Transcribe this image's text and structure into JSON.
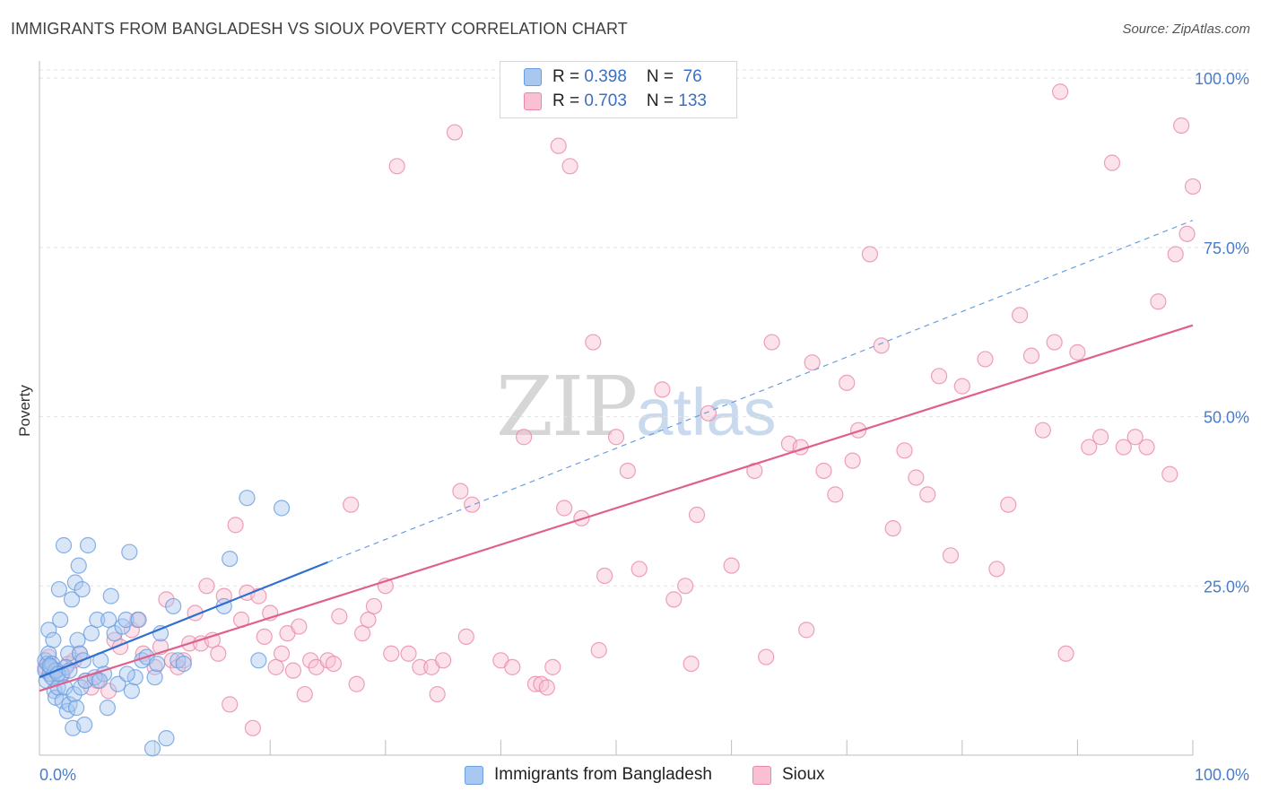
{
  "title": "IMMIGRANTS FROM BANGLADESH VS SIOUX POVERTY CORRELATION CHART",
  "source": "Source: ZipAtlas.com",
  "watermark": {
    "zip": "ZIP",
    "atlas": "atlas"
  },
  "legend": {
    "rows": [
      {
        "r_label": "R = ",
        "r_value": "0.398",
        "n_label": "N = ",
        "n_value": " 76",
        "color": "#a9c8f0",
        "border": "#6a9ee0"
      },
      {
        "r_label": "R = ",
        "r_value": "0.703",
        "n_label": "N = ",
        "n_value": "133",
        "color": "#f8c0d2",
        "border": "#e889a8"
      }
    ]
  },
  "bottom_legend": [
    {
      "label": "Immigrants from Bangladesh",
      "color": "#a9c8f0",
      "border": "#6a9ee0"
    },
    {
      "label": "Sioux",
      "color": "#f8c0d2",
      "border": "#e889a8"
    }
  ],
  "chart_data": {
    "type": "scatter",
    "title": "IMMIGRANTS FROM BANGLADESH VS SIOUX POVERTY CORRELATION CHART",
    "xlabel": "",
    "ylabel": "Poverty",
    "xlim": [
      0,
      100
    ],
    "ylim": [
      0,
      100
    ],
    "x_ticks": [
      "0.0%",
      "100.0%"
    ],
    "y_ticks": [
      {
        "value": 25,
        "label": "25.0%"
      },
      {
        "value": 50,
        "label": "50.0%"
      },
      {
        "value": 75,
        "label": "75.0%"
      },
      {
        "value": 100,
        "label": "100.0%"
      }
    ],
    "grid": true,
    "legend_position": "top-center",
    "series": [
      {
        "name": "Immigrants from Bangladesh",
        "color": "#6a9ee0",
        "fill": "#a9c8f0",
        "trend": {
          "x0": 0,
          "y0": 11.5,
          "x1": 25,
          "y1": 28.5,
          "dashed_to_x": 100,
          "dashed_to_y": 79,
          "color": "#2f6fd0"
        },
        "points": [
          [
            0.5,
            14
          ],
          [
            0.5,
            12.5
          ],
          [
            0.6,
            11
          ],
          [
            0.7,
            13.5
          ],
          [
            0.8,
            15
          ],
          [
            0.8,
            18.5
          ],
          [
            0.9,
            12
          ],
          [
            1,
            13
          ],
          [
            1.1,
            11.5
          ],
          [
            1.2,
            17
          ],
          [
            1.3,
            9.5
          ],
          [
            1.4,
            8.5
          ],
          [
            1.5,
            12.5
          ],
          [
            1.6,
            10
          ],
          [
            1.7,
            24.5
          ],
          [
            1.8,
            20
          ],
          [
            1.9,
            12
          ],
          [
            2,
            8
          ],
          [
            2.1,
            31
          ],
          [
            2.2,
            10
          ],
          [
            2.4,
            6.5
          ],
          [
            2.5,
            15
          ],
          [
            2.6,
            7.5
          ],
          [
            2.8,
            23
          ],
          [
            2.9,
            4
          ],
          [
            3,
            9
          ],
          [
            3.1,
            25.5
          ],
          [
            3.2,
            7
          ],
          [
            3.3,
            17
          ],
          [
            3.4,
            28
          ],
          [
            3.5,
            15
          ],
          [
            3.6,
            10
          ],
          [
            3.7,
            24.5
          ],
          [
            3.8,
            14
          ],
          [
            3.9,
            4.5
          ],
          [
            4,
            11
          ],
          [
            4.2,
            31
          ],
          [
            4.5,
            18
          ],
          [
            4.8,
            11.5
          ],
          [
            5,
            20
          ],
          [
            5.3,
            14
          ],
          [
            5.6,
            12
          ],
          [
            5.9,
            7
          ],
          [
            6,
            20
          ],
          [
            6.2,
            23.5
          ],
          [
            6.5,
            18
          ],
          [
            6.8,
            10.5
          ],
          [
            7.2,
            19
          ],
          [
            7.5,
            20
          ],
          [
            7.8,
            30
          ],
          [
            8,
            9.5
          ],
          [
            8.3,
            11.5
          ],
          [
            8.6,
            20
          ],
          [
            8.9,
            14
          ],
          [
            9.3,
            14.5
          ],
          [
            9.8,
            1
          ],
          [
            10,
            11.5
          ],
          [
            10.5,
            18
          ],
          [
            11,
            2.5
          ],
          [
            11.6,
            22
          ],
          [
            12,
            14
          ],
          [
            16,
            22
          ],
          [
            16.5,
            29
          ],
          [
            18,
            38
          ],
          [
            19,
            14
          ],
          [
            21,
            36.5
          ],
          [
            1.1,
            13.5
          ],
          [
            1.4,
            12.5
          ],
          [
            2.3,
            13
          ],
          [
            0.9,
            13.2
          ],
          [
            1.6,
            12
          ],
          [
            2.6,
            12.5
          ],
          [
            5.2,
            11
          ],
          [
            7.6,
            12
          ],
          [
            10.2,
            13.5
          ],
          [
            12.5,
            13.5
          ]
        ]
      },
      {
        "name": "Sioux",
        "color": "#e889a8",
        "fill": "#f8c0d2",
        "trend": {
          "x0": 0,
          "y0": 9.5,
          "x1": 100,
          "y1": 63.5,
          "color": "#e0608c"
        },
        "points": [
          [
            0.5,
            13
          ],
          [
            0.8,
            14.5
          ],
          [
            1,
            12
          ],
          [
            1.5,
            12.5
          ],
          [
            2,
            12
          ],
          [
            2.5,
            13.5
          ],
          [
            3,
            14
          ],
          [
            3.5,
            15
          ],
          [
            4,
            11
          ],
          [
            4.5,
            10
          ],
          [
            5,
            11
          ],
          [
            6,
            9.5
          ],
          [
            6.5,
            17
          ],
          [
            7,
            16
          ],
          [
            8,
            18.5
          ],
          [
            8.5,
            20
          ],
          [
            9,
            15
          ],
          [
            10,
            13
          ],
          [
            10.5,
            16
          ],
          [
            11,
            23
          ],
          [
            11.5,
            14
          ],
          [
            12,
            13
          ],
          [
            12.5,
            14
          ],
          [
            13,
            16.5
          ],
          [
            13.5,
            21
          ],
          [
            14,
            16.5
          ],
          [
            14.5,
            25
          ],
          [
            15,
            17
          ],
          [
            15.5,
            15
          ],
          [
            16,
            23.5
          ],
          [
            16.5,
            7.5
          ],
          [
            17,
            34
          ],
          [
            17.5,
            20
          ],
          [
            18,
            24
          ],
          [
            18.5,
            4
          ],
          [
            19,
            23.5
          ],
          [
            19.5,
            17.5
          ],
          [
            20,
            21
          ],
          [
            20.5,
            13
          ],
          [
            21,
            15
          ],
          [
            21.5,
            18
          ],
          [
            22,
            12.5
          ],
          [
            22.5,
            19
          ],
          [
            23,
            9
          ],
          [
            23.5,
            14
          ],
          [
            24,
            13
          ],
          [
            25,
            14
          ],
          [
            25.5,
            13.5
          ],
          [
            26,
            20.5
          ],
          [
            27,
            37
          ],
          [
            27.5,
            10.5
          ],
          [
            28,
            18
          ],
          [
            28.5,
            20
          ],
          [
            29,
            22
          ],
          [
            30,
            25
          ],
          [
            30.5,
            15
          ],
          [
            31,
            87
          ],
          [
            32,
            15
          ],
          [
            33,
            13
          ],
          [
            34,
            13
          ],
          [
            34.5,
            9
          ],
          [
            35,
            14
          ],
          [
            36,
            92
          ],
          [
            36.5,
            39
          ],
          [
            37,
            17.5
          ],
          [
            37.5,
            37
          ],
          [
            40,
            14
          ],
          [
            41,
            13
          ],
          [
            42,
            47
          ],
          [
            43,
            10.5
          ],
          [
            43.5,
            10.5
          ],
          [
            44,
            10
          ],
          [
            44.5,
            13
          ],
          [
            45,
            90
          ],
          [
            45.5,
            36.5
          ],
          [
            46,
            87
          ],
          [
            47,
            35
          ],
          [
            48,
            61
          ],
          [
            48.5,
            15.5
          ],
          [
            49,
            26.5
          ],
          [
            50,
            47
          ],
          [
            51,
            42
          ],
          [
            52,
            27.5
          ],
          [
            54,
            54
          ],
          [
            55,
            23
          ],
          [
            56,
            25
          ],
          [
            56.5,
            13.5
          ],
          [
            57,
            35.5
          ],
          [
            58,
            50.5
          ],
          [
            60,
            28
          ],
          [
            62,
            42
          ],
          [
            63,
            14.5
          ],
          [
            63.5,
            61
          ],
          [
            65,
            46
          ],
          [
            66,
            45.5
          ],
          [
            66.5,
            18.5
          ],
          [
            67,
            58
          ],
          [
            68,
            42
          ],
          [
            69,
            38.5
          ],
          [
            70,
            55
          ],
          [
            70.5,
            43.5
          ],
          [
            71,
            48
          ],
          [
            72,
            74
          ],
          [
            73,
            60.5
          ],
          [
            74,
            33.5
          ],
          [
            75,
            45
          ],
          [
            76,
            41
          ],
          [
            77,
            38.5
          ],
          [
            78,
            56
          ],
          [
            79,
            29.5
          ],
          [
            80,
            54.5
          ],
          [
            82,
            58.5
          ],
          [
            83,
            27.5
          ],
          [
            84,
            37
          ],
          [
            85,
            65
          ],
          [
            86,
            59
          ],
          [
            87,
            48
          ],
          [
            88,
            61
          ],
          [
            89,
            15
          ],
          [
            90,
            59.5
          ],
          [
            91,
            45.5
          ],
          [
            92,
            47
          ],
          [
            93,
            87.5
          ],
          [
            94,
            45.5
          ],
          [
            95,
            47
          ],
          [
            96,
            45.5
          ],
          [
            97,
            67
          ],
          [
            98,
            41.5
          ],
          [
            98.5,
            74
          ],
          [
            99,
            93
          ],
          [
            99.5,
            77
          ],
          [
            100,
            84
          ],
          [
            88.5,
            98
          ]
        ]
      }
    ]
  }
}
